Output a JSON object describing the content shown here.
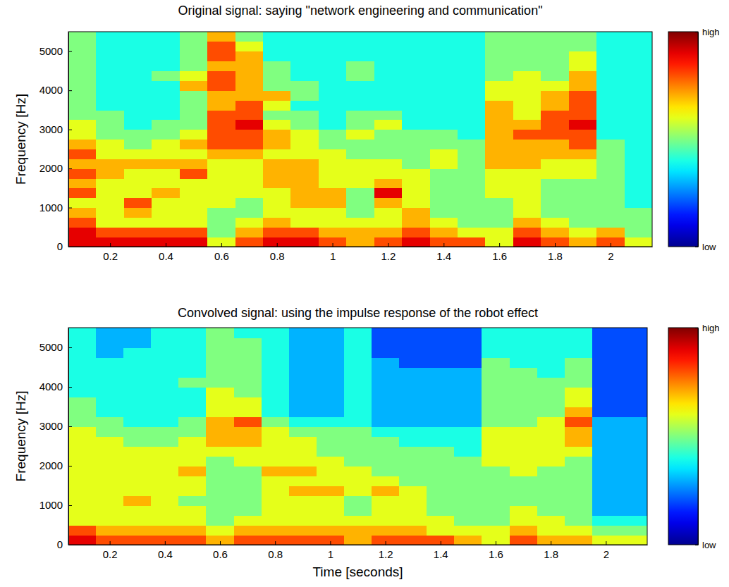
{
  "chart_data": [
    {
      "type": "heatmap",
      "title": "Original signal: saying \"network engineering and communication\"",
      "y_label": "Frequency [Hz]",
      "xlim": [
        0.05,
        2.15
      ],
      "ylim": [
        0,
        5500
      ],
      "xticks": [
        0.2,
        0.4,
        0.6,
        0.8,
        1,
        1.2,
        1.4,
        1.6,
        1.8,
        2
      ],
      "yticks": [
        0,
        1000,
        2000,
        3000,
        4000,
        5000
      ],
      "x": [
        0.1,
        0.2,
        0.3,
        0.4,
        0.5,
        0.6,
        0.7,
        0.8,
        0.9,
        1.0,
        1.1,
        1.2,
        1.3,
        1.4,
        1.5,
        1.6,
        1.7,
        1.8,
        1.9,
        2.0,
        2.1
      ],
      "y": [
        125,
        375,
        625,
        875,
        1125,
        1375,
        1625,
        1875,
        2125,
        2375,
        2625,
        2875,
        3125,
        3375,
        3625,
        3875,
        4125,
        4375,
        4625,
        4875,
        5125,
        5375
      ],
      "cells": [
        [
          9,
          9,
          8,
          7,
          6,
          8,
          7,
          8,
          7,
          8,
          7,
          6,
          6,
          5,
          5,
          5,
          5,
          5,
          5,
          5,
          5,
          5
        ],
        [
          9,
          8,
          6,
          6,
          6,
          6,
          6,
          7,
          7,
          6,
          6,
          5,
          5,
          5,
          4,
          4,
          4,
          4,
          4,
          4,
          4,
          4
        ],
        [
          9,
          8,
          6,
          7,
          8,
          6,
          6,
          6,
          7,
          6,
          5,
          5,
          4,
          4,
          4,
          4,
          4,
          4,
          4,
          4,
          4,
          4
        ],
        [
          9,
          8,
          6,
          6,
          6,
          7,
          6,
          6,
          7,
          6,
          6,
          5,
          5,
          4,
          4,
          4,
          4,
          5,
          4,
          4,
          4,
          4
        ],
        [
          9,
          8,
          6,
          6,
          6,
          6,
          6,
          8,
          7,
          6,
          7,
          6,
          5,
          5,
          5,
          5,
          7,
          6,
          5,
          5,
          5,
          5
        ],
        [
          6,
          5,
          5,
          5,
          6,
          6,
          6,
          6,
          6,
          7,
          8,
          8,
          8,
          8,
          7,
          7,
          8,
          8,
          7,
          8,
          8,
          7
        ],
        [
          8,
          7,
          6,
          5,
          5,
          6,
          6,
          6,
          6,
          7,
          8,
          8,
          9,
          8,
          8,
          7,
          7,
          7,
          7,
          7,
          6,
          5
        ],
        [
          9,
          8,
          7,
          6,
          6,
          6,
          7,
          7,
          7,
          6,
          7,
          7,
          6,
          5,
          6,
          7,
          5,
          5,
          5,
          4,
          4,
          4
        ],
        [
          9,
          8,
          6,
          6,
          7,
          7,
          7,
          7,
          7,
          6,
          6,
          6,
          5,
          5,
          4,
          5,
          5,
          4,
          4,
          4,
          4,
          4
        ],
        [
          8,
          7,
          6,
          6,
          7,
          7,
          6,
          6,
          6,
          6,
          5,
          5,
          4,
          4,
          4,
          4,
          4,
          4,
          4,
          4,
          4,
          4
        ],
        [
          7,
          7,
          6,
          5,
          5,
          5,
          6,
          6,
          6,
          5,
          5,
          6,
          5,
          5,
          4,
          4,
          4,
          5,
          5,
          4,
          4,
          4
        ],
        [
          8,
          7,
          6,
          6,
          7,
          9,
          7,
          6,
          6,
          5,
          5,
          5,
          6,
          5,
          4,
          4,
          4,
          4,
          4,
          4,
          4,
          4
        ],
        [
          9,
          8,
          7,
          7,
          6,
          6,
          6,
          6,
          5,
          5,
          5,
          5,
          4,
          4,
          4,
          4,
          4,
          4,
          4,
          4,
          4,
          4
        ],
        [
          8,
          7,
          6,
          5,
          5,
          5,
          5,
          5,
          6,
          6,
          5,
          5,
          4,
          4,
          4,
          4,
          4,
          4,
          4,
          4,
          4,
          4
        ],
        [
          8,
          6,
          5,
          5,
          5,
          5,
          5,
          5,
          5,
          5,
          5,
          4,
          4,
          4,
          4,
          4,
          4,
          4,
          4,
          4,
          4,
          4
        ],
        [
          6,
          6,
          5,
          5,
          5,
          6,
          6,
          6,
          7,
          7,
          7,
          7,
          7,
          7,
          7,
          6,
          6,
          5,
          5,
          5,
          5,
          5
        ],
        [
          9,
          8,
          7,
          6,
          6,
          6,
          6,
          6,
          7,
          7,
          7,
          8,
          7,
          6,
          6,
          6,
          6,
          6,
          5,
          5,
          5,
          5
        ],
        [
          8,
          7,
          6,
          5,
          5,
          5,
          5,
          6,
          6,
          7,
          7,
          8,
          8,
          8,
          7,
          7,
          6,
          5,
          5,
          5,
          5,
          5
        ],
        [
          7,
          6,
          5,
          5,
          5,
          5,
          5,
          6,
          6,
          7,
          8,
          8,
          9,
          8,
          8,
          8,
          7,
          7,
          6,
          6,
          5,
          5
        ],
        [
          8,
          7,
          5,
          5,
          5,
          5,
          5,
          5,
          5,
          5,
          5,
          4,
          4,
          4,
          4,
          4,
          4,
          4,
          4,
          4,
          4,
          4
        ],
        [
          6,
          5,
          5,
          5,
          4,
          4,
          4,
          4,
          4,
          4,
          4,
          4,
          4,
          4,
          4,
          4,
          4,
          4,
          4,
          4,
          4,
          4
        ]
      ],
      "colorbar_lim": [
        0,
        10
      ],
      "colorbar_ticks": [
        {
          "value": 0,
          "label": "low"
        },
        {
          "value": 10,
          "label": "high"
        }
      ]
    },
    {
      "type": "heatmap",
      "title": "Convolved signal: using the impulse response of the robot effect",
      "x_label": "Time [seconds]",
      "y_label": "Frequency [Hz]",
      "xlim": [
        0.05,
        2.15
      ],
      "ylim": [
        0,
        5500
      ],
      "xticks": [
        0.2,
        0.4,
        0.6,
        0.8,
        1,
        1.2,
        1.4,
        1.6,
        1.8,
        2
      ],
      "yticks": [
        0,
        1000,
        2000,
        3000,
        4000,
        5000
      ],
      "x": [
        0.1,
        0.2,
        0.3,
        0.4,
        0.5,
        0.6,
        0.7,
        0.8,
        0.9,
        1.0,
        1.1,
        1.2,
        1.3,
        1.4,
        1.5,
        1.6,
        1.7,
        1.8,
        1.9,
        2.0,
        2.1
      ],
      "y": [
        125,
        375,
        625,
        875,
        1125,
        1375,
        1625,
        1875,
        2125,
        2375,
        2625,
        2875,
        3125,
        3375,
        3625,
        3875,
        4125,
        4375,
        4625,
        4875,
        5125,
        5375
      ],
      "cells": [
        [
          9,
          8,
          6,
          6,
          6,
          6,
          6,
          6,
          6,
          6,
          6,
          6,
          5,
          5,
          5,
          4,
          4,
          4,
          4,
          4,
          4,
          4
        ],
        [
          8,
          7,
          6,
          6,
          6,
          6,
          6,
          6,
          6,
          6,
          6,
          5,
          5,
          4,
          4,
          4,
          4,
          4,
          4,
          3,
          3,
          3
        ],
        [
          8,
          7,
          6,
          6,
          7,
          6,
          6,
          6,
          6,
          6,
          5,
          5,
          4,
          4,
          4,
          4,
          4,
          4,
          4,
          4,
          3,
          3
        ],
        [
          8,
          7,
          6,
          6,
          6,
          6,
          6,
          6,
          6,
          6,
          5,
          5,
          4,
          4,
          4,
          4,
          4,
          4,
          4,
          4,
          4,
          4
        ],
        [
          8,
          7,
          6,
          6,
          5,
          6,
          6,
          7,
          6,
          6,
          6,
          5,
          5,
          4,
          4,
          4,
          5,
          4,
          4,
          4,
          4,
          4
        ],
        [
          7,
          6,
          5,
          5,
          5,
          5,
          5,
          5,
          5,
          6,
          7,
          7,
          7,
          6,
          6,
          6,
          5,
          5,
          5,
          5,
          5,
          5
        ],
        [
          8,
          7,
          6,
          5,
          5,
          5,
          5,
          5,
          6,
          6,
          7,
          7,
          8,
          6,
          6,
          5,
          5,
          5,
          5,
          5,
          5,
          4
        ],
        [
          8,
          7,
          6,
          6,
          6,
          6,
          6,
          7,
          6,
          6,
          6,
          6,
          5,
          4,
          4,
          4,
          4,
          4,
          4,
          4,
          4,
          4
        ],
        [
          8,
          7,
          6,
          6,
          6,
          7,
          6,
          7,
          6,
          6,
          6,
          5,
          4,
          3,
          3,
          3,
          3,
          3,
          3,
          3,
          3,
          3
        ],
        [
          8,
          7,
          6,
          6,
          6,
          7,
          6,
          6,
          6,
          5,
          5,
          5,
          4,
          3,
          3,
          3,
          3,
          3,
          3,
          3,
          3,
          3
        ],
        [
          7,
          7,
          6,
          5,
          5,
          6,
          6,
          6,
          5,
          5,
          5,
          5,
          4,
          4,
          4,
          4,
          4,
          4,
          4,
          4,
          4,
          4
        ],
        [
          8,
          7,
          6,
          6,
          6,
          7,
          6,
          5,
          5,
          5,
          5,
          4,
          3,
          3,
          3,
          3,
          3,
          3,
          3,
          2,
          2,
          2
        ],
        [
          8,
          7,
          6,
          6,
          6,
          6,
          5,
          5,
          5,
          5,
          4,
          4,
          3,
          3,
          3,
          3,
          3,
          3,
          2,
          2,
          2,
          2
        ],
        [
          8,
          6,
          6,
          5,
          5,
          5,
          5,
          5,
          5,
          5,
          4,
          4,
          3,
          3,
          3,
          3,
          3,
          3,
          2,
          2,
          2,
          2
        ],
        [
          7,
          6,
          5,
          5,
          5,
          5,
          5,
          5,
          5,
          4,
          4,
          4,
          3,
          3,
          3,
          3,
          3,
          3,
          2,
          2,
          2,
          2
        ],
        [
          6,
          6,
          5,
          5,
          5,
          5,
          5,
          5,
          6,
          6,
          6,
          6,
          5,
          5,
          5,
          5,
          5,
          5,
          5,
          4,
          4,
          4
        ],
        [
          8,
          7,
          6,
          6,
          5,
          5,
          5,
          6,
          6,
          6,
          6,
          6,
          5,
          5,
          5,
          5,
          5,
          5,
          4,
          4,
          4,
          4
        ],
        [
          7,
          6,
          6,
          5,
          5,
          5,
          5,
          5,
          6,
          6,
          6,
          6,
          6,
          5,
          5,
          5,
          5,
          4,
          4,
          4,
          4,
          4
        ],
        [
          7,
          6,
          5,
          5,
          5,
          5,
          5,
          5,
          5,
          6,
          7,
          7,
          8,
          7,
          6,
          6,
          5,
          5,
          5,
          4,
          4,
          4
        ],
        [
          6,
          5,
          4,
          3,
          3,
          3,
          3,
          3,
          3,
          3,
          3,
          3,
          3,
          2,
          2,
          2,
          2,
          2,
          2,
          2,
          2,
          2
        ],
        [
          6,
          5,
          4,
          3,
          3,
          3,
          3,
          3,
          3,
          3,
          3,
          3,
          3,
          2,
          2,
          2,
          2,
          2,
          2,
          2,
          2,
          2
        ]
      ],
      "colorbar_lim": [
        0,
        10
      ],
      "colorbar_ticks": [
        {
          "value": 0,
          "label": "low"
        },
        {
          "value": 10,
          "label": "high"
        }
      ]
    }
  ]
}
